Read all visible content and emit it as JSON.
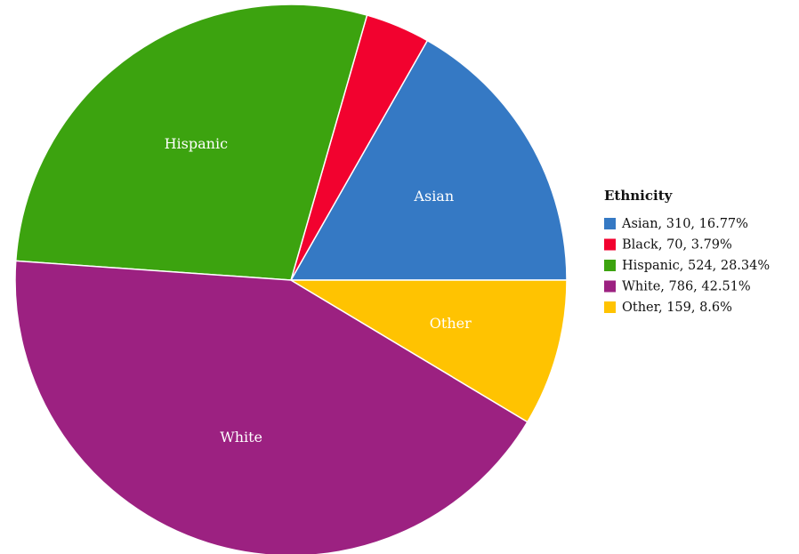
{
  "chart_data": {
    "type": "pie",
    "legend_title": "Ethnicity",
    "legend_position": "right",
    "slices": [
      {
        "label": "Asian",
        "value": 310,
        "percent": 16.77,
        "legend_text": "Asian, 310, 16.77%",
        "color": "#3579c4"
      },
      {
        "label": "Black",
        "value": 70,
        "percent": 3.79,
        "legend_text": "Black, 70, 3.79%",
        "color": "#f2022f"
      },
      {
        "label": "Hispanic",
        "value": 524,
        "percent": 28.34,
        "legend_text": "Hispanic, 524, 28.34%",
        "color": "#3ca30f"
      },
      {
        "label": "White",
        "value": 786,
        "percent": 42.51,
        "legend_text": "White, 786, 42.51%",
        "color": "#9c2181"
      },
      {
        "label": "Other",
        "value": 159,
        "percent": 8.6,
        "legend_text": "Other, 159, 8.6%",
        "color": "#ffc301"
      }
    ],
    "slice_labels": [
      "Asian",
      "Hispanic",
      "White",
      "Other"
    ]
  }
}
